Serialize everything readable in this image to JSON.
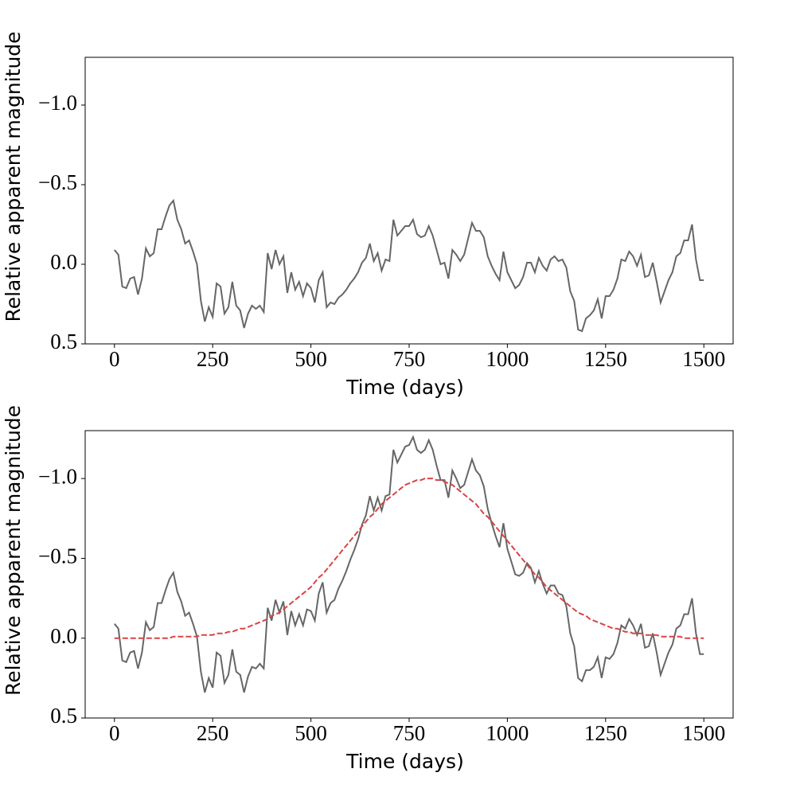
{
  "chart_data": [
    {
      "type": "line",
      "xlabel": "Time (days)",
      "ylabel": "Relative apparent magnitude",
      "x": [
        0,
        10,
        20,
        30,
        40,
        50,
        60,
        70,
        80,
        90,
        100,
        110,
        120,
        130,
        140,
        150,
        160,
        170,
        180,
        190,
        200,
        210,
        220,
        230,
        240,
        250,
        260,
        270,
        280,
        290,
        300,
        310,
        320,
        330,
        340,
        350,
        360,
        370,
        380,
        390,
        400,
        410,
        420,
        430,
        440,
        450,
        460,
        470,
        480,
        490,
        500,
        510,
        520,
        530,
        540,
        550,
        560,
        570,
        580,
        590,
        600,
        610,
        620,
        630,
        640,
        650,
        660,
        670,
        680,
        690,
        700,
        710,
        720,
        730,
        740,
        750,
        760,
        770,
        780,
        790,
        800,
        810,
        820,
        830,
        840,
        850,
        860,
        870,
        880,
        890,
        900,
        910,
        920,
        930,
        940,
        950,
        960,
        970,
        980,
        990,
        1000,
        1010,
        1020,
        1030,
        1040,
        1050,
        1060,
        1070,
        1080,
        1090,
        1100,
        1110,
        1120,
        1130,
        1140,
        1150,
        1160,
        1170,
        1180,
        1190,
        1200,
        1210,
        1220,
        1230,
        1240,
        1250,
        1260,
        1270,
        1280,
        1290,
        1300,
        1310,
        1320,
        1330,
        1340,
        1350,
        1360,
        1370,
        1380,
        1390,
        1400,
        1410,
        1420,
        1430,
        1440,
        1450,
        1460,
        1470,
        1480,
        1490,
        1500
      ],
      "series": [
        {
          "color": "#666666",
          "linestyle": "solid",
          "values": [
            -0.09,
            -0.06,
            0.14,
            0.15,
            0.09,
            0.08,
            0.19,
            0.09,
            -0.1,
            -0.05,
            -0.07,
            -0.22,
            -0.22,
            -0.3,
            -0.37,
            -0.4,
            -0.28,
            -0.22,
            -0.13,
            -0.15,
            -0.08,
            0.0,
            0.23,
            0.36,
            0.27,
            0.33,
            0.12,
            0.14,
            0.31,
            0.27,
            0.11,
            0.26,
            0.29,
            0.4,
            0.31,
            0.26,
            0.28,
            0.26,
            0.3,
            -0.07,
            0.03,
            -0.09,
            0.0,
            -0.05,
            0.18,
            0.05,
            0.16,
            0.11,
            0.2,
            0.12,
            0.15,
            0.24,
            0.1,
            0.05,
            0.27,
            0.24,
            0.25,
            0.21,
            0.19,
            0.16,
            0.12,
            0.09,
            0.05,
            -0.01,
            -0.04,
            -0.13,
            -0.02,
            -0.07,
            0.04,
            -0.03,
            -0.02,
            -0.28,
            -0.18,
            -0.21,
            -0.24,
            -0.24,
            -0.28,
            -0.19,
            -0.17,
            -0.18,
            -0.24,
            -0.18,
            -0.09,
            0.0,
            -0.01,
            0.09,
            -0.09,
            -0.06,
            -0.02,
            -0.06,
            -0.16,
            -0.26,
            -0.21,
            -0.21,
            -0.17,
            -0.05,
            0.01,
            0.06,
            0.1,
            -0.08,
            0.05,
            0.1,
            0.15,
            0.13,
            0.08,
            -0.01,
            -0.01,
            0.05,
            -0.04,
            0.01,
            0.04,
            -0.03,
            -0.05,
            -0.02,
            -0.03,
            0.02,
            0.17,
            0.23,
            0.41,
            0.42,
            0.34,
            0.32,
            0.29,
            0.22,
            0.34,
            0.2,
            0.2,
            0.16,
            0.09,
            -0.03,
            -0.02,
            -0.08,
            -0.05,
            0.01,
            -0.06,
            0.08,
            0.07,
            -0.01,
            0.11,
            0.24,
            0.17,
            0.1,
            0.05,
            -0.05,
            -0.07,
            -0.15,
            -0.15,
            -0.25,
            -0.03,
            0.1,
            0.1
          ]
        }
      ],
      "xlim": [
        -74.5,
        1574.5
      ],
      "ylim": [
        0.5,
        -1.3
      ],
      "xticks": [
        0,
        250,
        500,
        750,
        1000,
        1250,
        1500
      ],
      "yticks": [
        {
          "value": -1.0,
          "label": "−1.0"
        },
        {
          "value": -0.5,
          "label": "−0.5"
        },
        {
          "value": 0.0,
          "label": "0.0"
        },
        {
          "value": 0.5,
          "label": "0.5"
        }
      ]
    },
    {
      "type": "line",
      "xlabel": "Time (days)",
      "ylabel": "Relative apparent magnitude",
      "x": [
        0,
        10,
        20,
        30,
        40,
        50,
        60,
        70,
        80,
        90,
        100,
        110,
        120,
        130,
        140,
        150,
        160,
        170,
        180,
        190,
        200,
        210,
        220,
        230,
        240,
        250,
        260,
        270,
        280,
        290,
        300,
        310,
        320,
        330,
        340,
        350,
        360,
        370,
        380,
        390,
        400,
        410,
        420,
        430,
        440,
        450,
        460,
        470,
        480,
        490,
        500,
        510,
        520,
        530,
        540,
        550,
        560,
        570,
        580,
        590,
        600,
        610,
        620,
        630,
        640,
        650,
        660,
        670,
        680,
        690,
        700,
        710,
        720,
        730,
        740,
        750,
        760,
        770,
        780,
        790,
        800,
        810,
        820,
        830,
        840,
        850,
        860,
        870,
        880,
        890,
        900,
        910,
        920,
        930,
        940,
        950,
        960,
        970,
        980,
        990,
        1000,
        1010,
        1020,
        1030,
        1040,
        1050,
        1060,
        1070,
        1080,
        1090,
        1100,
        1110,
        1120,
        1130,
        1140,
        1150,
        1160,
        1170,
        1180,
        1190,
        1200,
        1210,
        1220,
        1230,
        1240,
        1250,
        1260,
        1270,
        1280,
        1290,
        1300,
        1310,
        1320,
        1330,
        1340,
        1350,
        1360,
        1370,
        1380,
        1390,
        1400,
        1410,
        1420,
        1430,
        1440,
        1450,
        1460,
        1470,
        1480,
        1490,
        1500
      ],
      "series": [
        {
          "color": "#666666",
          "linestyle": "solid",
          "values": [
            -0.09,
            -0.06,
            0.14,
            0.15,
            0.09,
            0.08,
            0.19,
            0.09,
            -0.1,
            -0.05,
            -0.07,
            -0.22,
            -0.22,
            -0.3,
            -0.37,
            -0.41,
            -0.29,
            -0.23,
            -0.14,
            -0.16,
            -0.09,
            -0.01,
            0.21,
            0.34,
            0.25,
            0.31,
            0.09,
            0.11,
            0.28,
            0.23,
            0.07,
            0.21,
            0.23,
            0.34,
            0.24,
            0.18,
            0.19,
            0.16,
            0.19,
            -0.19,
            -0.11,
            -0.24,
            -0.16,
            -0.23,
            -0.02,
            -0.17,
            -0.08,
            -0.15,
            -0.08,
            -0.18,
            -0.17,
            -0.11,
            -0.28,
            -0.35,
            -0.16,
            -0.22,
            -0.24,
            -0.31,
            -0.36,
            -0.42,
            -0.49,
            -0.55,
            -0.62,
            -0.71,
            -0.77,
            -0.89,
            -0.8,
            -0.88,
            -0.8,
            -0.89,
            -0.9,
            -1.18,
            -1.1,
            -1.15,
            -1.2,
            -1.21,
            -1.26,
            -1.18,
            -1.16,
            -1.18,
            -1.24,
            -1.18,
            -1.08,
            -0.99,
            -0.99,
            -0.88,
            -1.05,
            -1.0,
            -0.94,
            -0.96,
            -1.04,
            -1.12,
            -1.05,
            -1.02,
            -0.95,
            -0.81,
            -0.72,
            -0.64,
            -0.57,
            -0.72,
            -0.56,
            -0.48,
            -0.4,
            -0.39,
            -0.41,
            -0.47,
            -0.44,
            -0.35,
            -0.42,
            -0.34,
            -0.28,
            -0.33,
            -0.33,
            -0.28,
            -0.27,
            -0.2,
            -0.03,
            0.05,
            0.25,
            0.27,
            0.2,
            0.2,
            0.18,
            0.12,
            0.25,
            0.12,
            0.13,
            0.1,
            0.03,
            -0.08,
            -0.06,
            -0.12,
            -0.08,
            -0.02,
            -0.09,
            0.06,
            0.05,
            -0.03,
            0.09,
            0.23,
            0.16,
            0.09,
            0.04,
            -0.06,
            -0.08,
            -0.15,
            -0.15,
            -0.25,
            -0.03,
            0.1,
            0.1
          ]
        },
        {
          "color": "#d94444",
          "linestyle": "dashed",
          "values": [
            0,
            0,
            0,
            0,
            0,
            0,
            0,
            0,
            0,
            0,
            0,
            0,
            0,
            0,
            0,
            -0.01,
            -0.01,
            -0.01,
            -0.01,
            -0.01,
            -0.01,
            -0.01,
            -0.02,
            -0.02,
            -0.02,
            -0.02,
            -0.03,
            -0.03,
            -0.03,
            -0.04,
            -0.04,
            -0.05,
            -0.06,
            -0.06,
            -0.07,
            -0.08,
            -0.09,
            -0.1,
            -0.11,
            -0.12,
            -0.14,
            -0.15,
            -0.16,
            -0.18,
            -0.2,
            -0.22,
            -0.24,
            -0.26,
            -0.28,
            -0.3,
            -0.32,
            -0.35,
            -0.38,
            -0.4,
            -0.43,
            -0.46,
            -0.49,
            -0.52,
            -0.55,
            -0.58,
            -0.61,
            -0.64,
            -0.67,
            -0.7,
            -0.73,
            -0.76,
            -0.78,
            -0.81,
            -0.84,
            -0.86,
            -0.88,
            -0.9,
            -0.92,
            -0.94,
            -0.96,
            -0.97,
            -0.98,
            -0.99,
            -0.99,
            -1.0,
            -1.0,
            -1.0,
            -0.99,
            -0.99,
            -0.98,
            -0.97,
            -0.96,
            -0.94,
            -0.92,
            -0.9,
            -0.88,
            -0.86,
            -0.84,
            -0.81,
            -0.78,
            -0.76,
            -0.73,
            -0.7,
            -0.67,
            -0.64,
            -0.61,
            -0.58,
            -0.55,
            -0.52,
            -0.49,
            -0.46,
            -0.43,
            -0.4,
            -0.38,
            -0.35,
            -0.32,
            -0.3,
            -0.28,
            -0.26,
            -0.24,
            -0.22,
            -0.2,
            -0.18,
            -0.16,
            -0.15,
            -0.14,
            -0.12,
            -0.11,
            -0.1,
            -0.09,
            -0.08,
            -0.07,
            -0.06,
            -0.06,
            -0.05,
            -0.04,
            -0.04,
            -0.03,
            -0.03,
            -0.03,
            -0.02,
            -0.02,
            -0.02,
            -0.02,
            -0.01,
            -0.01,
            -0.01,
            -0.01,
            -0.01,
            -0.01,
            0,
            0,
            0,
            0,
            0,
            0
          ]
        }
      ],
      "xlim": [
        -74.5,
        1574.5
      ],
      "ylim": [
        0.5,
        -1.3
      ],
      "xticks": [
        0,
        250,
        500,
        750,
        1000,
        1250,
        1500
      ],
      "yticks": [
        {
          "value": -1.0,
          "label": "−1.0"
        },
        {
          "value": -0.5,
          "label": "−0.5"
        },
        {
          "value": 0.0,
          "label": "0.0"
        },
        {
          "value": 0.5,
          "label": "0.5"
        }
      ]
    }
  ]
}
